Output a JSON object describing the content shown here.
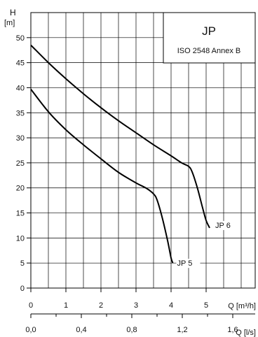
{
  "chart_data": {
    "type": "line",
    "title": "JP",
    "subtitle": "ISO 2548 Annex B",
    "ylabel_top": "H",
    "ylabel_unit": "[m]",
    "xlabel": "Q [m³/h]",
    "x2label": "Q [l/s]",
    "xlim": [
      0,
      6.4
    ],
    "ylim": [
      0,
      55
    ],
    "grid": true,
    "y_ticks": [
      "0",
      "5",
      "10",
      "15",
      "20",
      "25",
      "30",
      "35",
      "40",
      "45",
      "50"
    ],
    "x_ticks": [
      "0",
      "1",
      "2",
      "3",
      "4",
      "5"
    ],
    "x2_ticks": [
      "0,0",
      "0,4",
      "0,8",
      "1,2",
      "1,6"
    ],
    "series": [
      {
        "name": "JP 6",
        "x": [
          0,
          0.5,
          1,
          1.5,
          2,
          2.5,
          3,
          3.5,
          4,
          4.3,
          4.5,
          4.6,
          4.75,
          4.9,
          5.0,
          5.1
        ],
        "y": [
          48.5,
          45.0,
          41.8,
          38.8,
          36.0,
          33.4,
          31.0,
          28.6,
          26.4,
          25.0,
          24.3,
          23.2,
          20.0,
          16.0,
          13.5,
          12.0
        ]
      },
      {
        "name": "JP 5",
        "x": [
          0,
          0.5,
          1,
          1.5,
          2,
          2.5,
          3,
          3.3,
          3.5,
          3.6,
          3.75,
          3.9,
          4.0,
          4.05
        ],
        "y": [
          39.7,
          35.2,
          31.6,
          28.6,
          25.8,
          23.1,
          21.0,
          19.9,
          18.8,
          17.6,
          14.0,
          9.5,
          6.0,
          5.0
        ]
      }
    ]
  }
}
